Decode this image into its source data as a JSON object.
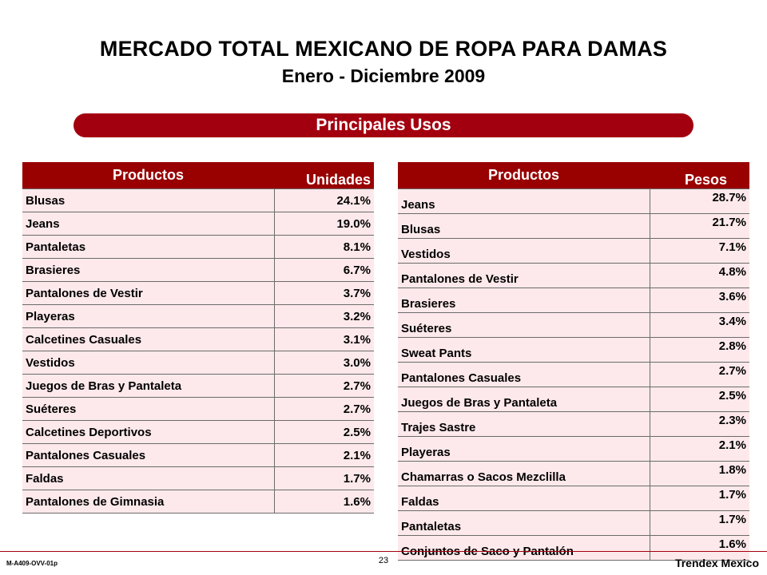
{
  "header": {
    "title": "MERCADO TOTAL MEXICANO DE ROPA PARA DAMAS",
    "subtitle": "Enero - Diciembre 2009"
  },
  "banner": {
    "label": "Principales Usos"
  },
  "colors": {
    "banner": "#a3000f",
    "table_header": "#990000",
    "row_fill": "#fde9eb"
  },
  "units_table": {
    "col_product": "Productos",
    "col_value": "Unidades",
    "rows": [
      {
        "product": "Blusas",
        "value": "24.1%"
      },
      {
        "product": "Jeans",
        "value": "19.0%"
      },
      {
        "product": "Pantaletas",
        "value": "8.1%"
      },
      {
        "product": "Brasieres",
        "value": "6.7%"
      },
      {
        "product": "Pantalones de Vestir",
        "value": "3.7%"
      },
      {
        "product": "Playeras",
        "value": "3.2%"
      },
      {
        "product": "Calcetines Casuales",
        "value": "3.1%"
      },
      {
        "product": "Vestidos",
        "value": "3.0%"
      },
      {
        "product": "Juegos de Bras y Pantaleta",
        "value": "2.7%"
      },
      {
        "product": "Suéteres",
        "value": "2.7%"
      },
      {
        "product": "Calcetines Deportivos",
        "value": "2.5%"
      },
      {
        "product": "Pantalones Casuales",
        "value": "2.1%"
      },
      {
        "product": "Faldas",
        "value": "1.7%"
      },
      {
        "product": "Pantalones de Gimnasia",
        "value": "1.6%"
      }
    ]
  },
  "pesos_table": {
    "col_product": "Productos",
    "col_value": "Pesos",
    "rows": [
      {
        "product": "Jeans",
        "value": "28.7%"
      },
      {
        "product": "Blusas",
        "value": "21.7%"
      },
      {
        "product": "Vestidos",
        "value": "7.1%"
      },
      {
        "product": "Pantalones de Vestir",
        "value": "4.8%"
      },
      {
        "product": "Brasieres",
        "value": "3.6%"
      },
      {
        "product": "Suéteres",
        "value": "3.4%"
      },
      {
        "product": "Sweat Pants",
        "value": "2.8%"
      },
      {
        "product": "Pantalones Casuales",
        "value": "2.7%"
      },
      {
        "product": "Juegos de Bras y Pantaleta",
        "value": "2.5%"
      },
      {
        "product": "Trajes Sastre",
        "value": "2.3%"
      },
      {
        "product": "Playeras",
        "value": "2.1%"
      },
      {
        "product": "Chamarras o Sacos Mezclilla",
        "value": "1.8%"
      },
      {
        "product": "Faldas",
        "value": "1.7%"
      },
      {
        "product": "Pantaletas",
        "value": "1.7%"
      },
      {
        "product": "Conjuntos de Saco y Pantalón",
        "value": "1.6%"
      }
    ]
  },
  "footer": {
    "code": "M-A409-OVV-01p",
    "page": "23",
    "brand": "Trendex Mexico"
  }
}
